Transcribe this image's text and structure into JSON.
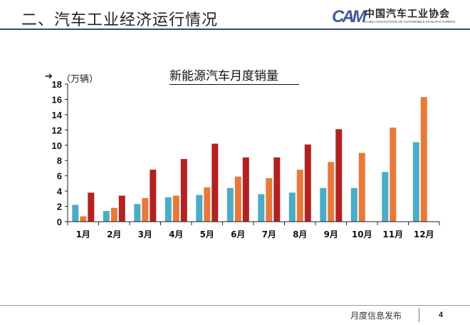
{
  "header": {
    "title": "二、汽车工业经济运行情况",
    "logo_mark": "CAM",
    "logo_name": "中国汽车工业协会",
    "logo_subtitle": "CHINA ASSOCIATION OF AUTOMOBILE MANUFACTURERS"
  },
  "footer": {
    "text": "月度信息发布",
    "page": "4"
  },
  "colors": {
    "series_1": "#4bacc6",
    "series_2": "#e8793a",
    "series_3": "#b22222",
    "header_rule": "#2e4a86"
  },
  "chart_data": {
    "type": "bar",
    "title": "新能源汽车月度销量",
    "ylabel": "（万辆）",
    "xlabel": "",
    "ylim": [
      0,
      18
    ],
    "yticks": [
      0,
      2,
      4,
      6,
      8,
      10,
      12,
      14,
      16,
      18
    ],
    "categories": [
      "1月",
      "2月",
      "3月",
      "4月",
      "5月",
      "6月",
      "7月",
      "8月",
      "9月",
      "10月",
      "11月",
      "12月"
    ],
    "series": [
      {
        "values": [
          2.2,
          1.4,
          2.3,
          3.2,
          3.5,
          4.4,
          3.6,
          3.8,
          4.4,
          4.4,
          6.5,
          10.4
        ]
      },
      {
        "values": [
          0.7,
          1.8,
          3.1,
          3.4,
          4.5,
          5.9,
          5.7,
          6.8,
          7.8,
          9.0,
          12.3,
          16.3
        ]
      },
      {
        "values": [
          3.8,
          3.4,
          6.8,
          8.2,
          10.2,
          8.4,
          8.4,
          10.1,
          12.1,
          null,
          null,
          null
        ]
      }
    ],
    "grid": false,
    "legend": "none"
  }
}
